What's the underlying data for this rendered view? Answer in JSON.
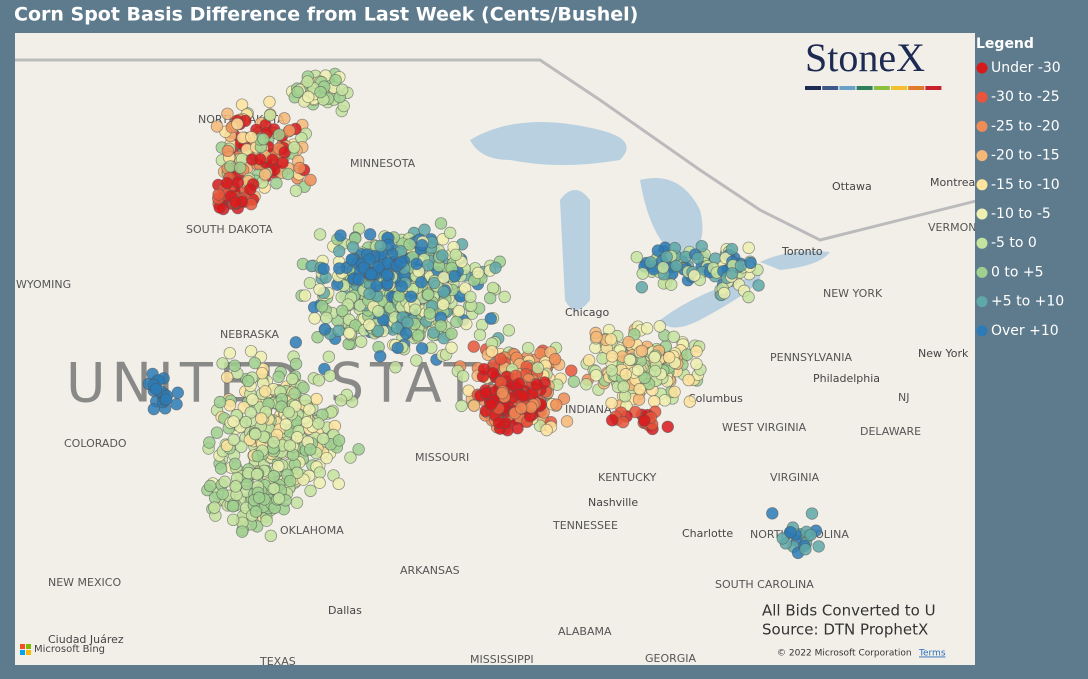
{
  "title": "Corn Spot Basis Difference from Last Week (Cents/Bushel)",
  "logo": "StoneX",
  "legend": {
    "title": "Legend",
    "items": [
      {
        "label": "Under -30",
        "color": "#d7191c"
      },
      {
        "label": "-30 to -25",
        "color": "#e8553a"
      },
      {
        "label": "-25 to -20",
        "color": "#f08c56"
      },
      {
        "label": "-20 to -15",
        "color": "#f6b877"
      },
      {
        "label": "-15 to -10",
        "color": "#fde39d"
      },
      {
        "label": "-10 to -5",
        "color": "#eef0b0"
      },
      {
        "label": "-5 to 0",
        "color": "#c5e3a0"
      },
      {
        "label": "0 to +5",
        "color": "#9fd08f"
      },
      {
        "label": "+5 to +10",
        "color": "#5fa8a8"
      },
      {
        "label": "Over +10",
        "color": "#2c7bb6"
      }
    ]
  },
  "map_labels": [
    "NORTH DAKOTA",
    "MINNESOTA",
    "SOUTH DAKOTA",
    "WYOMING",
    "NEBRASKA",
    "UNITED STATES",
    "COLORADO",
    "MISSOURI",
    "KENTUCKY",
    "OKLAHOMA",
    "ARKANSAS",
    "NEW MEXICO",
    "TENNESSEE",
    "ALABAMA",
    "GEORGIA",
    "MISSISSIPPI",
    "TEXAS",
    "Dallas",
    "Ciudad Juárez",
    "Chicago",
    "Nashville",
    "Columbus",
    "INDIANA",
    "WEST VIRGINIA",
    "VIRGINIA",
    "NORTH CAROLINA",
    "Charlotte",
    "SOUTH CAROLINA",
    "PENNSYLVANIA",
    "NEW YORK",
    "New York",
    "Philadelphia",
    "DELAWARE",
    "NJ",
    "Ottawa",
    "Montreal",
    "VERMONT",
    "Toronto"
  ],
  "notes": [
    "All Bids Converted to U",
    "Source: DTN ProphetX"
  ],
  "attribution": {
    "provider": "Microsoft Bing",
    "copyright": "© 2022 Microsoft Corporation",
    "terms": "Terms"
  }
}
